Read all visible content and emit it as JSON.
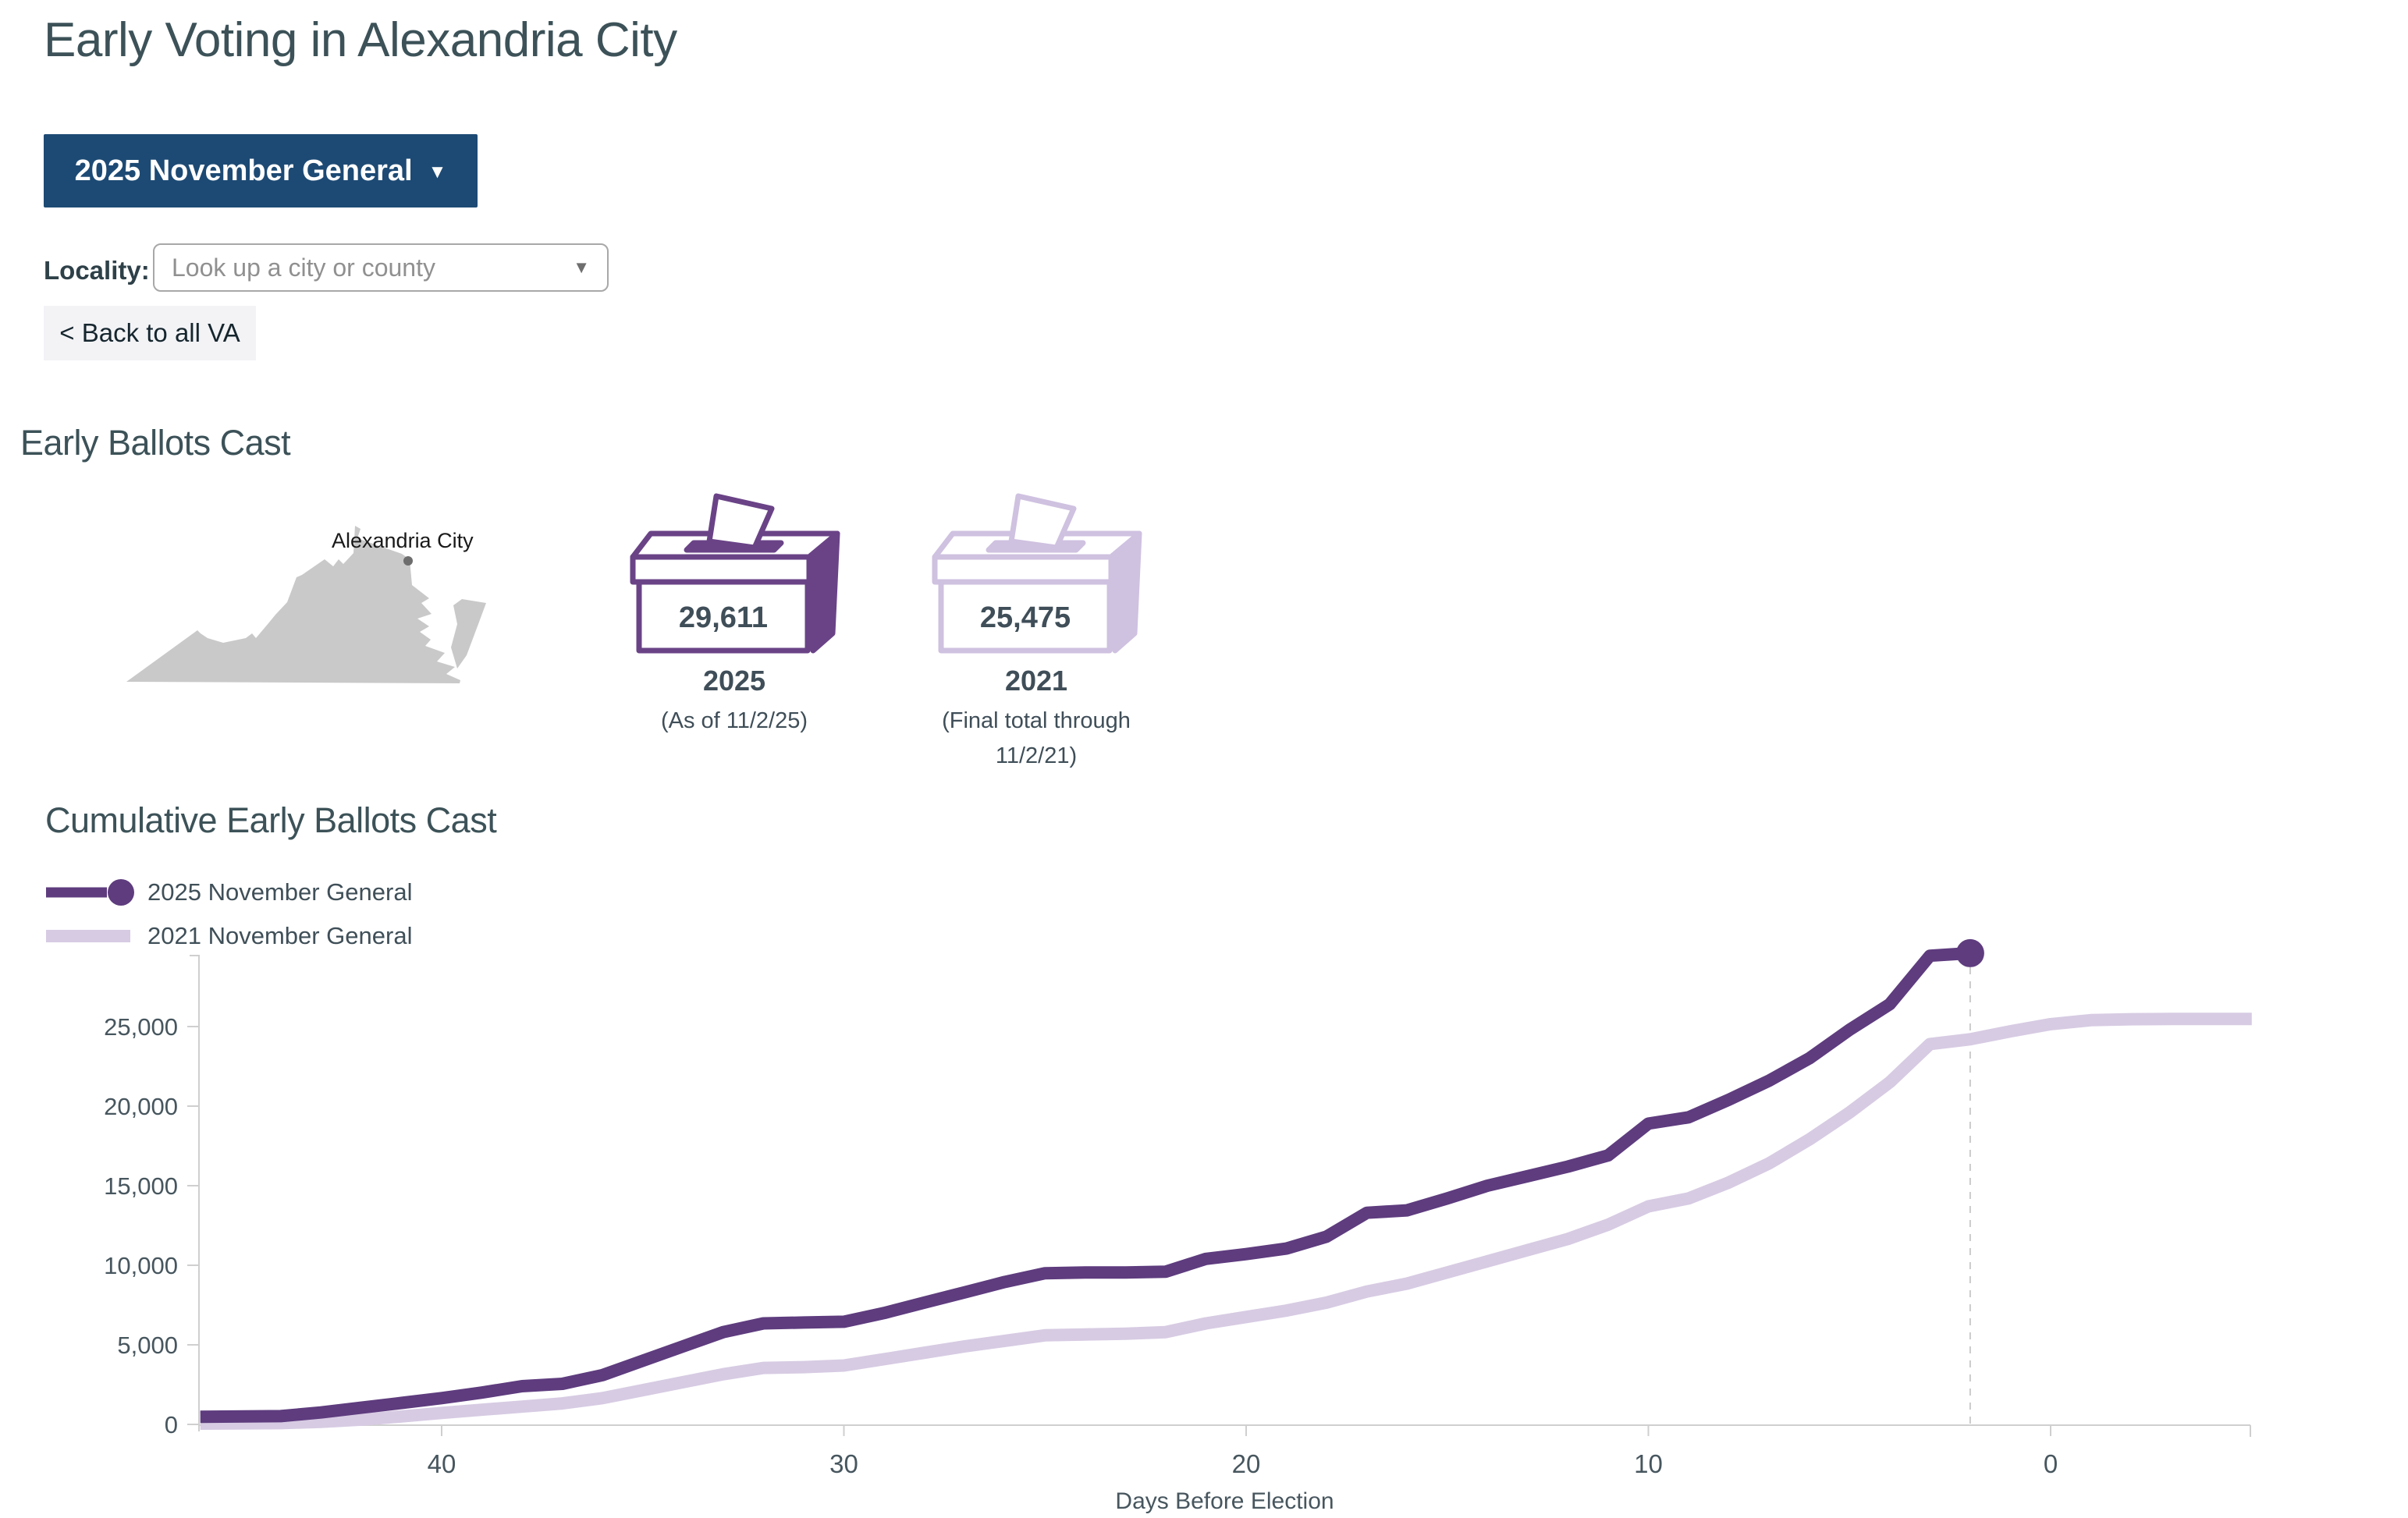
{
  "page": {
    "title": "Early Voting in Alexandria City"
  },
  "controls": {
    "election_dropdown": {
      "label": "2025 November General",
      "caret": "▼"
    },
    "locality": {
      "label": "Locality:",
      "placeholder": "Look up a city or county",
      "caret": "▼"
    },
    "back_button": {
      "label": "< Back to all VA"
    }
  },
  "ballots": {
    "heading": "Early Ballots Cast",
    "map_label": "Alexandria City",
    "cards": [
      {
        "value": "29,611",
        "year": "2025",
        "note": "(As of 11/2/25)",
        "theme": "dark"
      },
      {
        "value": "25,475",
        "year": "2021",
        "note": "(Final total through 11/2/21)",
        "theme": "light"
      }
    ]
  },
  "chart_section": {
    "heading": "Cumulative Early Ballots Cast",
    "legend": [
      {
        "label": "2025 November General",
        "color": "#5e3c7e",
        "marker": "line-dot"
      },
      {
        "label": "2021 November General",
        "color": "#d7cbe3",
        "marker": "line"
      }
    ]
  },
  "chart_data": {
    "type": "line",
    "title": "Cumulative Early Ballots Cast",
    "xlabel": "Days Before Election",
    "ylabel": "",
    "x_axis": {
      "label": "Days Before Election",
      "ticks": [
        40,
        30,
        20,
        10,
        0
      ],
      "range": [
        46,
        -5
      ],
      "direction": "days-decrease-to-right"
    },
    "y_axis": {
      "ticks": [
        0,
        5000,
        10000,
        15000,
        20000,
        25000
      ],
      "range": [
        0,
        30000
      ]
    },
    "grid": false,
    "legend_position": "top-left",
    "asof_day": 2,
    "asof_dashed_line": true,
    "series": [
      {
        "name": "2025 November General",
        "color": "#5e3c7e",
        "end_dot": true,
        "final_value": 29611,
        "points": [
          [
            46,
            480
          ],
          [
            44,
            520
          ],
          [
            43,
            750
          ],
          [
            42,
            1050
          ],
          [
            41,
            1350
          ],
          [
            40,
            1650
          ],
          [
            39,
            2000
          ],
          [
            38,
            2400
          ],
          [
            37,
            2550
          ],
          [
            36,
            3100
          ],
          [
            35,
            4000
          ],
          [
            34,
            4900
          ],
          [
            33,
            5800
          ],
          [
            32,
            6350
          ],
          [
            31,
            6400
          ],
          [
            30,
            6450
          ],
          [
            29,
            7000
          ],
          [
            28,
            7650
          ],
          [
            27,
            8300
          ],
          [
            26,
            8950
          ],
          [
            25,
            9500
          ],
          [
            24,
            9550
          ],
          [
            23,
            9550
          ],
          [
            22,
            9600
          ],
          [
            21,
            10400
          ],
          [
            20,
            10700
          ],
          [
            19,
            11050
          ],
          [
            18,
            11800
          ],
          [
            17,
            13300
          ],
          [
            16,
            13450
          ],
          [
            15,
            14200
          ],
          [
            14,
            15000
          ],
          [
            13,
            15600
          ],
          [
            12,
            16200
          ],
          [
            11,
            16900
          ],
          [
            10,
            18900
          ],
          [
            9,
            19300
          ],
          [
            8,
            20400
          ],
          [
            7,
            21600
          ],
          [
            6,
            23000
          ],
          [
            5,
            24800
          ],
          [
            4,
            26400
          ],
          [
            3,
            29450
          ],
          [
            2,
            29611
          ]
        ]
      },
      {
        "name": "2021 November General",
        "color": "#d7cbe3",
        "end_dot": false,
        "final_value": 25475,
        "points": [
          [
            46,
            50
          ],
          [
            44,
            80
          ],
          [
            43,
            160
          ],
          [
            42,
            300
          ],
          [
            41,
            500
          ],
          [
            40,
            720
          ],
          [
            39,
            920
          ],
          [
            38,
            1120
          ],
          [
            37,
            1320
          ],
          [
            36,
            1650
          ],
          [
            35,
            2150
          ],
          [
            34,
            2650
          ],
          [
            33,
            3150
          ],
          [
            32,
            3550
          ],
          [
            31,
            3600
          ],
          [
            30,
            3700
          ],
          [
            29,
            4100
          ],
          [
            28,
            4500
          ],
          [
            27,
            4900
          ],
          [
            26,
            5250
          ],
          [
            25,
            5600
          ],
          [
            24,
            5650
          ],
          [
            23,
            5700
          ],
          [
            22,
            5800
          ],
          [
            21,
            6350
          ],
          [
            20,
            6750
          ],
          [
            19,
            7150
          ],
          [
            18,
            7650
          ],
          [
            17,
            8350
          ],
          [
            16,
            8850
          ],
          [
            15,
            9550
          ],
          [
            14,
            10250
          ],
          [
            13,
            10950
          ],
          [
            12,
            11650
          ],
          [
            11,
            12550
          ],
          [
            10,
            13700
          ],
          [
            9,
            14200
          ],
          [
            8,
            15200
          ],
          [
            7,
            16400
          ],
          [
            6,
            17900
          ],
          [
            5,
            19600
          ],
          [
            4,
            21500
          ],
          [
            3,
            23900
          ],
          [
            2,
            24200
          ],
          [
            1,
            24700
          ],
          [
            0,
            25150
          ],
          [
            -1,
            25400
          ],
          [
            -2,
            25460
          ],
          [
            -3,
            25475
          ],
          [
            -5,
            25475
          ]
        ]
      }
    ]
  },
  "colors": {
    "accent_navy": "#1d4a74",
    "purple_dark": "#5e3c7e",
    "purple_light": "#d7cbe3",
    "heading_slate": "#3c5258",
    "map_gray": "#c9c9c9",
    "axis_gray": "#cfcfcf"
  }
}
